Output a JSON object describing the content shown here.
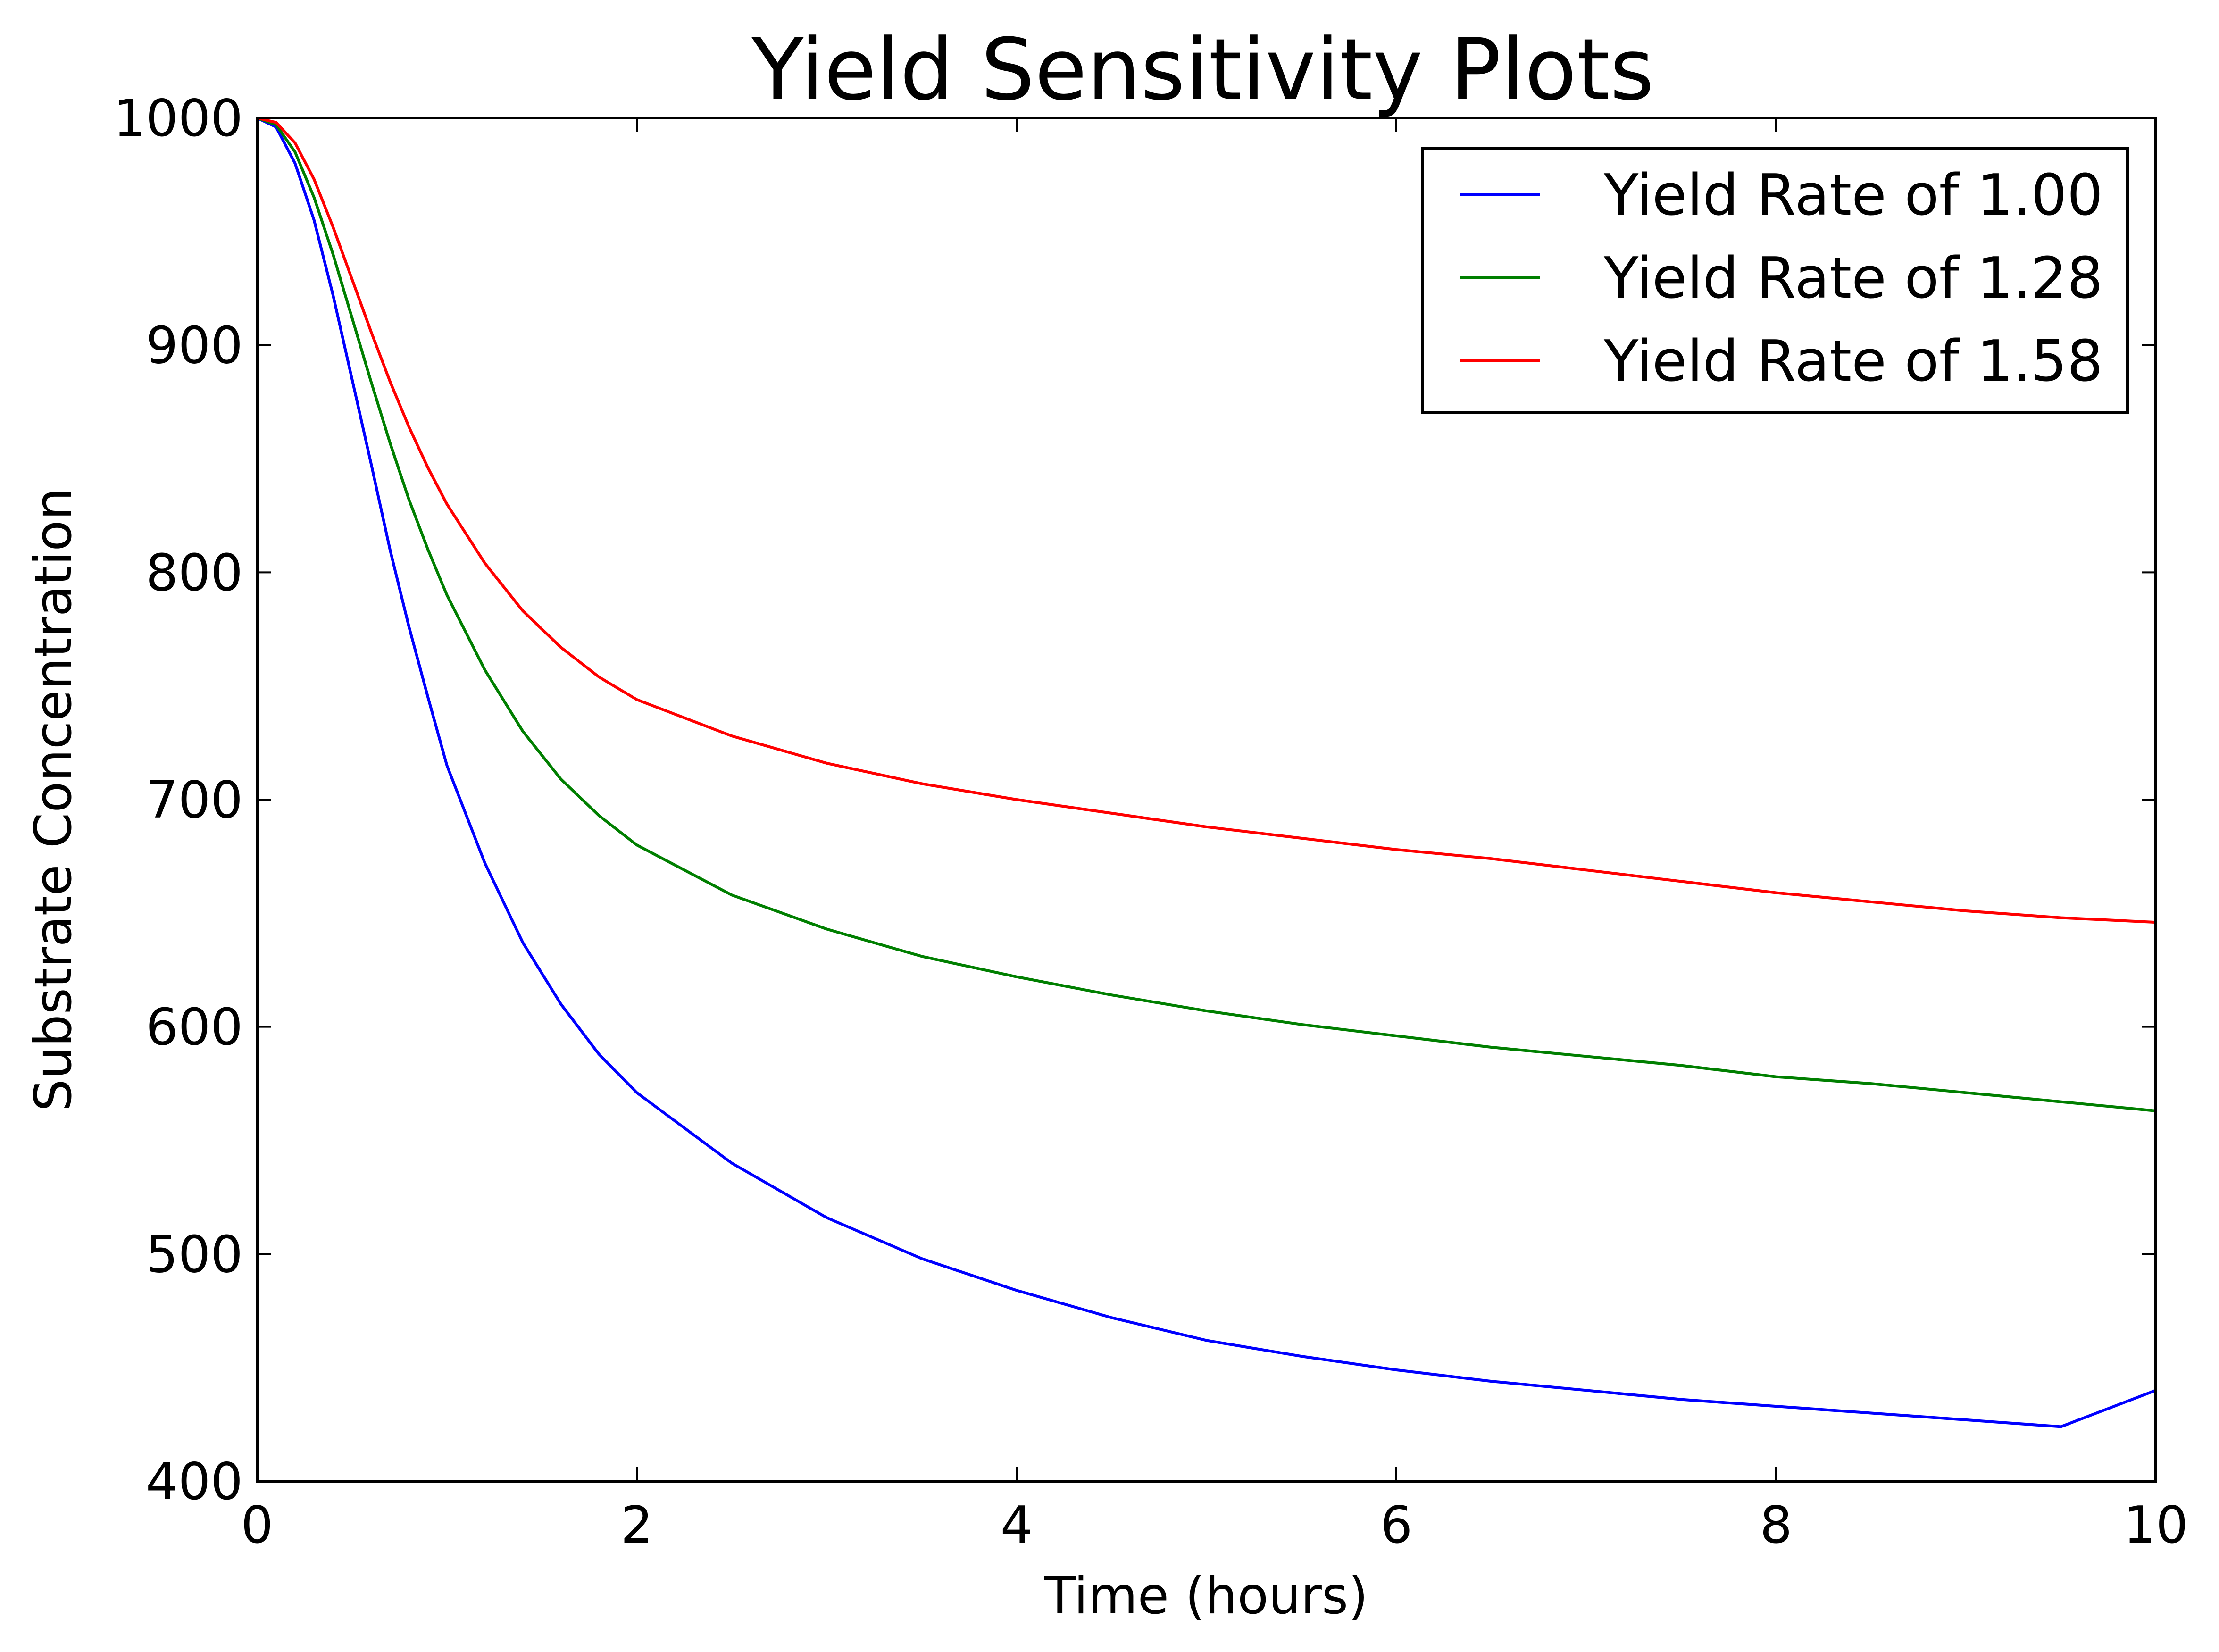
{
  "chart_data": {
    "type": "line",
    "title": "Yield Sensitivity Plots",
    "xlabel": "Time (hours)",
    "ylabel": "Substrate Concentration",
    "xlim": [
      0,
      10
    ],
    "ylim": [
      400,
      1000
    ],
    "xticks": [
      0,
      2,
      4,
      6,
      8,
      10
    ],
    "yticks": [
      400,
      500,
      600,
      700,
      800,
      900,
      1000
    ],
    "grid": false,
    "legend_position": "top-right",
    "x": [
      0,
      0.1,
      0.2,
      0.3,
      0.4,
      0.5,
      0.6,
      0.7,
      0.8,
      0.9,
      1.0,
      1.2,
      1.4,
      1.6,
      1.8,
      2.0,
      2.5,
      3.0,
      3.5,
      4.0,
      4.5,
      5.0,
      5.5,
      6.0,
      6.5,
      7.0,
      7.5,
      8.0,
      8.5,
      9.0,
      9.5,
      10.0
    ],
    "series": [
      {
        "name": "Yield Rate of 1.00",
        "color": "#0000ff",
        "values": [
          1000,
          996,
          980,
          955,
          922,
          885,
          848,
          810,
          776,
          745,
          715,
          672,
          637,
          610,
          588,
          571,
          540,
          516,
          498,
          484,
          472,
          462,
          455,
          449,
          444,
          440,
          436,
          433,
          430,
          427,
          424,
          440
        ]
      },
      {
        "name": "Yield Rate of 1.28",
        "color": "#007f00",
        "values": [
          1000,
          997,
          985,
          965,
          940,
          912,
          884,
          857,
          832,
          810,
          790,
          757,
          730,
          709,
          693,
          680,
          658,
          643,
          631,
          622,
          614,
          607,
          601,
          596,
          591,
          587,
          583,
          578,
          575,
          571,
          567,
          563
        ]
      },
      {
        "name": "Yield Rate of 1.58",
        "color": "#ff0000",
        "values": [
          1000,
          998,
          989,
          973,
          952,
          929,
          906,
          884,
          864,
          846,
          830,
          804,
          783,
          767,
          754,
          744,
          728,
          716,
          707,
          700,
          694,
          688,
          683,
          678,
          674,
          669,
          664,
          659,
          655,
          651,
          648,
          646
        ]
      }
    ]
  }
}
